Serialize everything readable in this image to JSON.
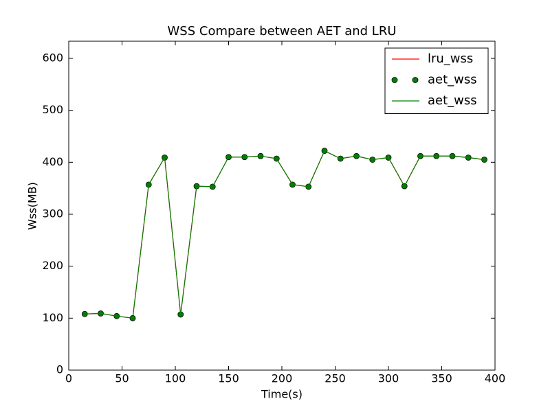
{
  "chart_data": {
    "type": "line",
    "title": "WSS Compare between AET and LRU",
    "xlabel": "Time(s)",
    "ylabel": "Wss(MB)",
    "x": [
      15,
      30,
      45,
      60,
      75,
      90,
      105,
      120,
      135,
      150,
      165,
      180,
      195,
      210,
      225,
      240,
      255,
      270,
      285,
      300,
      315,
      330,
      345,
      360,
      375,
      390
    ],
    "series": [
      {
        "name": "lru_wss",
        "color": "#ff0000",
        "style": "line",
        "values": [
          108,
          109,
          104,
          100,
          357,
          409,
          107,
          354,
          353,
          410,
          410,
          412,
          407,
          357,
          353,
          422,
          407,
          412,
          405,
          409,
          354,
          412,
          412,
          412,
          409,
          405
        ]
      },
      {
        "name": "aet_wss",
        "color": "#008000",
        "style": "marker",
        "values": [
          108,
          109,
          104,
          100,
          357,
          409,
          107,
          354,
          353,
          410,
          410,
          412,
          407,
          357,
          353,
          422,
          407,
          412,
          405,
          409,
          354,
          412,
          412,
          412,
          409,
          405
        ]
      },
      {
        "name": "aet_wss",
        "color": "#008000",
        "style": "line",
        "values": [
          108,
          109,
          104,
          100,
          357,
          409,
          107,
          354,
          353,
          410,
          410,
          412,
          407,
          357,
          353,
          422,
          407,
          412,
          405,
          409,
          354,
          412,
          412,
          412,
          409,
          405
        ]
      }
    ],
    "xlim": [
      0,
      400
    ],
    "xticks": [
      0,
      50,
      100,
      150,
      200,
      250,
      300,
      350,
      400
    ],
    "ylim": [
      0,
      633
    ],
    "yticks": [
      0,
      100,
      200,
      300,
      400,
      500,
      600
    ],
    "legend": "upper right",
    "grid": false
  }
}
